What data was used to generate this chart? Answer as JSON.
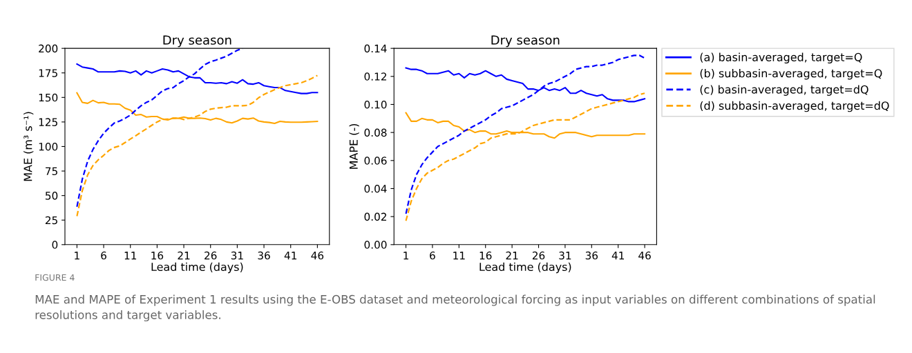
{
  "chart_data": [
    {
      "type": "line",
      "title": "Dry season",
      "xlabel": "Lead time (days)",
      "ylabel": "MAE (m³ s⁻¹)",
      "x": [
        1,
        2,
        3,
        4,
        5,
        6,
        7,
        8,
        9,
        10,
        11,
        12,
        13,
        14,
        15,
        16,
        17,
        18,
        19,
        20,
        21,
        22,
        23,
        24,
        25,
        26,
        27,
        28,
        29,
        30,
        31,
        32,
        33,
        34,
        35,
        36,
        37,
        38,
        39,
        40,
        41,
        42,
        43,
        44,
        45,
        46
      ],
      "xlim": [
        -1.25,
        48.25
      ],
      "xticks": [
        1,
        6,
        11,
        16,
        21,
        26,
        31,
        36,
        41,
        46
      ],
      "ylim": [
        0,
        200
      ],
      "yticks": [
        0,
        25,
        50,
        75,
        100,
        125,
        150,
        175,
        200
      ],
      "grid": false,
      "legend": false,
      "series": [
        {
          "color": "#0000ff",
          "line_style": "solid",
          "values": [
            184,
            181,
            180,
            179,
            176,
            176,
            176,
            176,
            177,
            176.6,
            175,
            177,
            173,
            177,
            175,
            177,
            179,
            178,
            176,
            177,
            174,
            171,
            170,
            170,
            165,
            165,
            164.5,
            165,
            164,
            166,
            164.5,
            168,
            164,
            163.5,
            165,
            162,
            161,
            160,
            160,
            157,
            156,
            155,
            154,
            154,
            155,
            155
          ]
        },
        {
          "color": "#ffa500",
          "line_style": "solid",
          "values": [
            154.6,
            145,
            144,
            147,
            144.5,
            145,
            143.4,
            143.4,
            143,
            139,
            137,
            132,
            132.6,
            130,
            130.5,
            130.5,
            128,
            127,
            129,
            128.7,
            130,
            128.7,
            128.7,
            129,
            128.4,
            127,
            128.7,
            127.5,
            125,
            124,
            126,
            128.7,
            128,
            129,
            126,
            125,
            124.5,
            123.5,
            125.6,
            125,
            124.8,
            124.7,
            124.8,
            125,
            125.3,
            125.6
          ]
        },
        {
          "color": "#0000ff",
          "line_style": "dashed",
          "values": [
            38.6,
            66.7,
            85,
            97,
            106,
            113.5,
            119,
            124,
            126,
            128.7,
            132,
            137,
            141.5,
            145,
            147.5,
            152,
            156.7,
            159,
            160,
            164,
            167,
            171,
            174,
            179,
            183.6,
            186.4,
            188,
            190,
            192,
            195,
            198,
            200,
            null,
            null,
            null,
            null,
            null,
            null,
            null,
            null,
            null,
            null,
            null,
            null,
            null,
            null
          ]
        },
        {
          "color": "#ffa500",
          "line_style": "dashed",
          "values": [
            29,
            55,
            71,
            80.7,
            86.5,
            91,
            96,
            99,
            100.6,
            104,
            107.6,
            111,
            114.6,
            118,
            121.6,
            125,
            127.5,
            128,
            128.7,
            129,
            127.5,
            128.7,
            130,
            132,
            135.7,
            138,
            139,
            139.6,
            140,
            141.5,
            141.5,
            141.5,
            142,
            145,
            149.7,
            153,
            155.5,
            158,
            160,
            162,
            163,
            164,
            165,
            167,
            169.6,
            172.4
          ]
        }
      ]
    },
    {
      "type": "line",
      "title": "Dry season",
      "xlabel": "Lead time (days)",
      "ylabel": "MAPE (-)",
      "x": [
        1,
        2,
        3,
        4,
        5,
        6,
        7,
        8,
        9,
        10,
        11,
        12,
        13,
        14,
        15,
        16,
        17,
        18,
        19,
        20,
        21,
        22,
        23,
        24,
        25,
        26,
        27,
        28,
        29,
        30,
        31,
        32,
        33,
        34,
        35,
        36,
        37,
        38,
        39,
        40,
        41,
        42,
        43,
        44,
        45,
        46
      ],
      "xlim": [
        -1.25,
        48.25
      ],
      "xticks": [
        1,
        6,
        11,
        16,
        21,
        26,
        31,
        36,
        41,
        46
      ],
      "ylim": [
        0,
        0.14
      ],
      "yticks": [
        {
          "value": 0,
          "label": "0.00"
        },
        {
          "value": 0.02,
          "label": "0.02"
        },
        {
          "value": 0.04,
          "label": "0.04"
        },
        {
          "value": 0.06,
          "label": "0.06"
        },
        {
          "value": 0.08,
          "label": "0.08"
        },
        {
          "value": 0.1,
          "label": "0.10"
        },
        {
          "value": 0.12,
          "label": "0.12"
        },
        {
          "value": 0.14,
          "label": "0.14"
        }
      ],
      "grid": false,
      "legend": "right",
      "series": [
        {
          "name": "(a) basin-averaged, target=Q",
          "color": "#0000ff",
          "line_style": "solid",
          "values": [
            0.126,
            0.125,
            0.125,
            0.124,
            0.122,
            0.122,
            0.122,
            0.123,
            0.124,
            0.121,
            0.122,
            0.119,
            0.122,
            0.121,
            0.122,
            0.124,
            0.122,
            0.12,
            0.121,
            0.118,
            0.117,
            0.116,
            0.115,
            0.111,
            0.111,
            0.11,
            0.112,
            0.11,
            0.111,
            0.11,
            0.112,
            0.108,
            0.108,
            0.11,
            0.108,
            0.107,
            0.106,
            0.107,
            0.104,
            0.103,
            0.103,
            0.103,
            0.102,
            0.102,
            0.103,
            0.104
          ]
        },
        {
          "name": "(b) subbasin-averaged, target=Q",
          "color": "#ffa500",
          "line_style": "solid",
          "values": [
            0.094,
            0.088,
            0.088,
            0.09,
            0.089,
            0.089,
            0.087,
            0.088,
            0.088,
            0.085,
            0.084,
            0.081,
            0.082,
            0.08,
            0.081,
            0.081,
            0.079,
            0.079,
            0.08,
            0.081,
            0.08,
            0.08,
            0.08,
            0.08,
            0.079,
            0.079,
            0.079,
            0.077,
            0.076,
            0.079,
            0.08,
            0.08,
            0.08,
            0.079,
            0.078,
            0.077,
            0.078,
            0.078,
            0.078,
            0.078,
            0.078,
            0.078,
            0.078,
            0.079,
            0.079,
            0.079
          ]
        },
        {
          "name": "(c) basin-averaged, target=dQ",
          "color": "#0000ff",
          "line_style": "dashed",
          "values": [
            0.022,
            0.039,
            0.05,
            0.057,
            0.062,
            0.066,
            0.07,
            0.072,
            0.074,
            0.076,
            0.078,
            0.081,
            0.083,
            0.085,
            0.087,
            0.089,
            0.092,
            0.094,
            0.097,
            0.098,
            0.099,
            0.101,
            0.103,
            0.105,
            0.107,
            0.11,
            0.113,
            0.115,
            0.116,
            0.118,
            0.12,
            0.122,
            0.125,
            0.126,
            0.127,
            0.127,
            0.128,
            0.128,
            0.129,
            0.13,
            0.132,
            0.133,
            0.134,
            0.135,
            0.135,
            0.133
          ]
        },
        {
          "name": "(d) subbasin-averaged, target=dQ",
          "color": "#ffa500",
          "line_style": "dashed",
          "values": [
            0.017,
            0.031,
            0.04,
            0.047,
            0.051,
            0.053,
            0.055,
            0.058,
            0.06,
            0.061,
            0.063,
            0.065,
            0.067,
            0.069,
            0.072,
            0.073,
            0.076,
            0.077,
            0.078,
            0.079,
            0.079,
            0.079,
            0.081,
            0.083,
            0.085,
            0.086,
            0.087,
            0.088,
            0.089,
            0.089,
            0.089,
            0.089,
            0.091,
            0.093,
            0.095,
            0.097,
            0.098,
            0.099,
            0.1,
            0.101,
            0.102,
            0.103,
            0.104,
            0.105,
            0.107,
            0.108
          ]
        }
      ],
      "annotations": [
        "FIGURE 4",
        "MAE and MAPE of Experiment 1 results using the E-OBS dataset and meteorological forcing as input variables on different combinations of spatial resolutions and target variables."
      ]
    }
  ]
}
